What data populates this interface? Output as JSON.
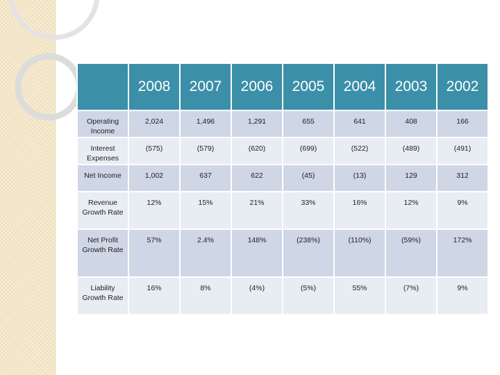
{
  "table": {
    "corner": "",
    "years": [
      "2008",
      "2007",
      "2006",
      "2005",
      "2004",
      "2003",
      "2002"
    ],
    "rows": [
      {
        "label": "Operating Income",
        "values": [
          "2,024",
          "1,496",
          "1,291",
          "655",
          "641",
          "408",
          "166"
        ]
      },
      {
        "label": "Interest Expenses",
        "values": [
          "(575)",
          "(579)",
          "(620)",
          "(699)",
          "(522)",
          "(489)",
          "(491)"
        ]
      },
      {
        "label": "Net Income",
        "values": [
          "1,002",
          "637",
          "622",
          "(45)",
          "(13)",
          "129",
          "312"
        ]
      },
      {
        "label": "Revenue Growth Rate",
        "values": [
          "12%",
          "15%",
          "21%",
          "33%",
          "16%",
          "12%",
          "9%"
        ]
      },
      {
        "label": "Net Profit Growth Rate",
        "values": [
          "57%",
          "2.4%",
          "148%",
          "(238%)",
          "(110%)",
          "(59%)",
          "172%"
        ]
      },
      {
        "label": "Liability Growth Rate",
        "values": [
          "16%",
          "8%",
          "(4%)",
          "(5%)",
          "55%",
          "(7%)",
          "9%"
        ]
      }
    ]
  },
  "colors": {
    "header": "#3b8fa8",
    "row_dark": "#cfd6e5",
    "row_light": "#e8ecf3",
    "side_strip": "#f7ecd3"
  }
}
